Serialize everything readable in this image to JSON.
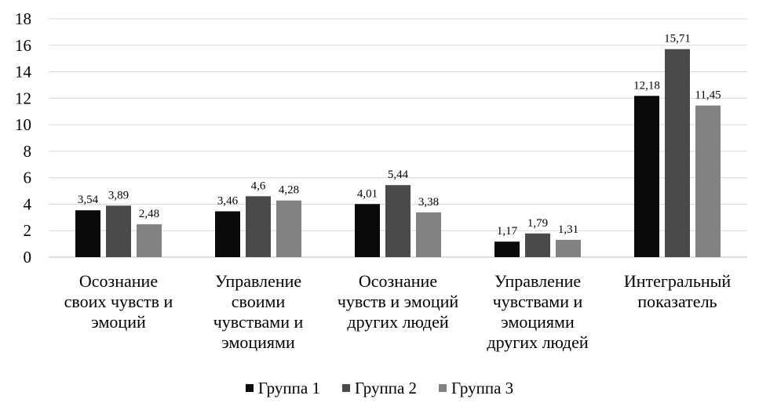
{
  "chart_data": {
    "type": "bar",
    "title": "",
    "xlabel": "",
    "ylabel": "",
    "ylim": [
      0,
      18
    ],
    "yticks": [
      0,
      2,
      4,
      6,
      8,
      10,
      12,
      14,
      16,
      18
    ],
    "grid": true,
    "legend_position": "bottom",
    "categories": [
      [
        "Осознание",
        "своих чувств и",
        "эмоций"
      ],
      [
        "Управление",
        "своими",
        "чувствами и",
        "эмоциями"
      ],
      [
        "Осознание",
        "чувств и эмоций",
        "других людей"
      ],
      [
        "Управление",
        "чувствами и",
        "эмоциями",
        "других людей"
      ],
      [
        "Интегральный",
        "показатель"
      ]
    ],
    "series": [
      {
        "name": "Группа 1",
        "color": "#0a0a0a",
        "values": [
          3.54,
          3.46,
          4.01,
          1.17,
          12.18
        ],
        "labels": [
          "3,54",
          "3,46",
          "4,01",
          "1,17",
          "12,18"
        ]
      },
      {
        "name": "Группа 2",
        "color": "#4a4a4a",
        "values": [
          3.89,
          4.6,
          5.44,
          1.79,
          15.71
        ],
        "labels": [
          "3,89",
          "4,6",
          "5,44",
          "1,79",
          "15,71"
        ]
      },
      {
        "name": "Группа 3",
        "color": "#828282",
        "values": [
          2.48,
          4.28,
          3.38,
          1.31,
          11.45
        ],
        "labels": [
          "2,48",
          "4,28",
          "3,38",
          "1,31",
          "11,45"
        ]
      }
    ]
  }
}
